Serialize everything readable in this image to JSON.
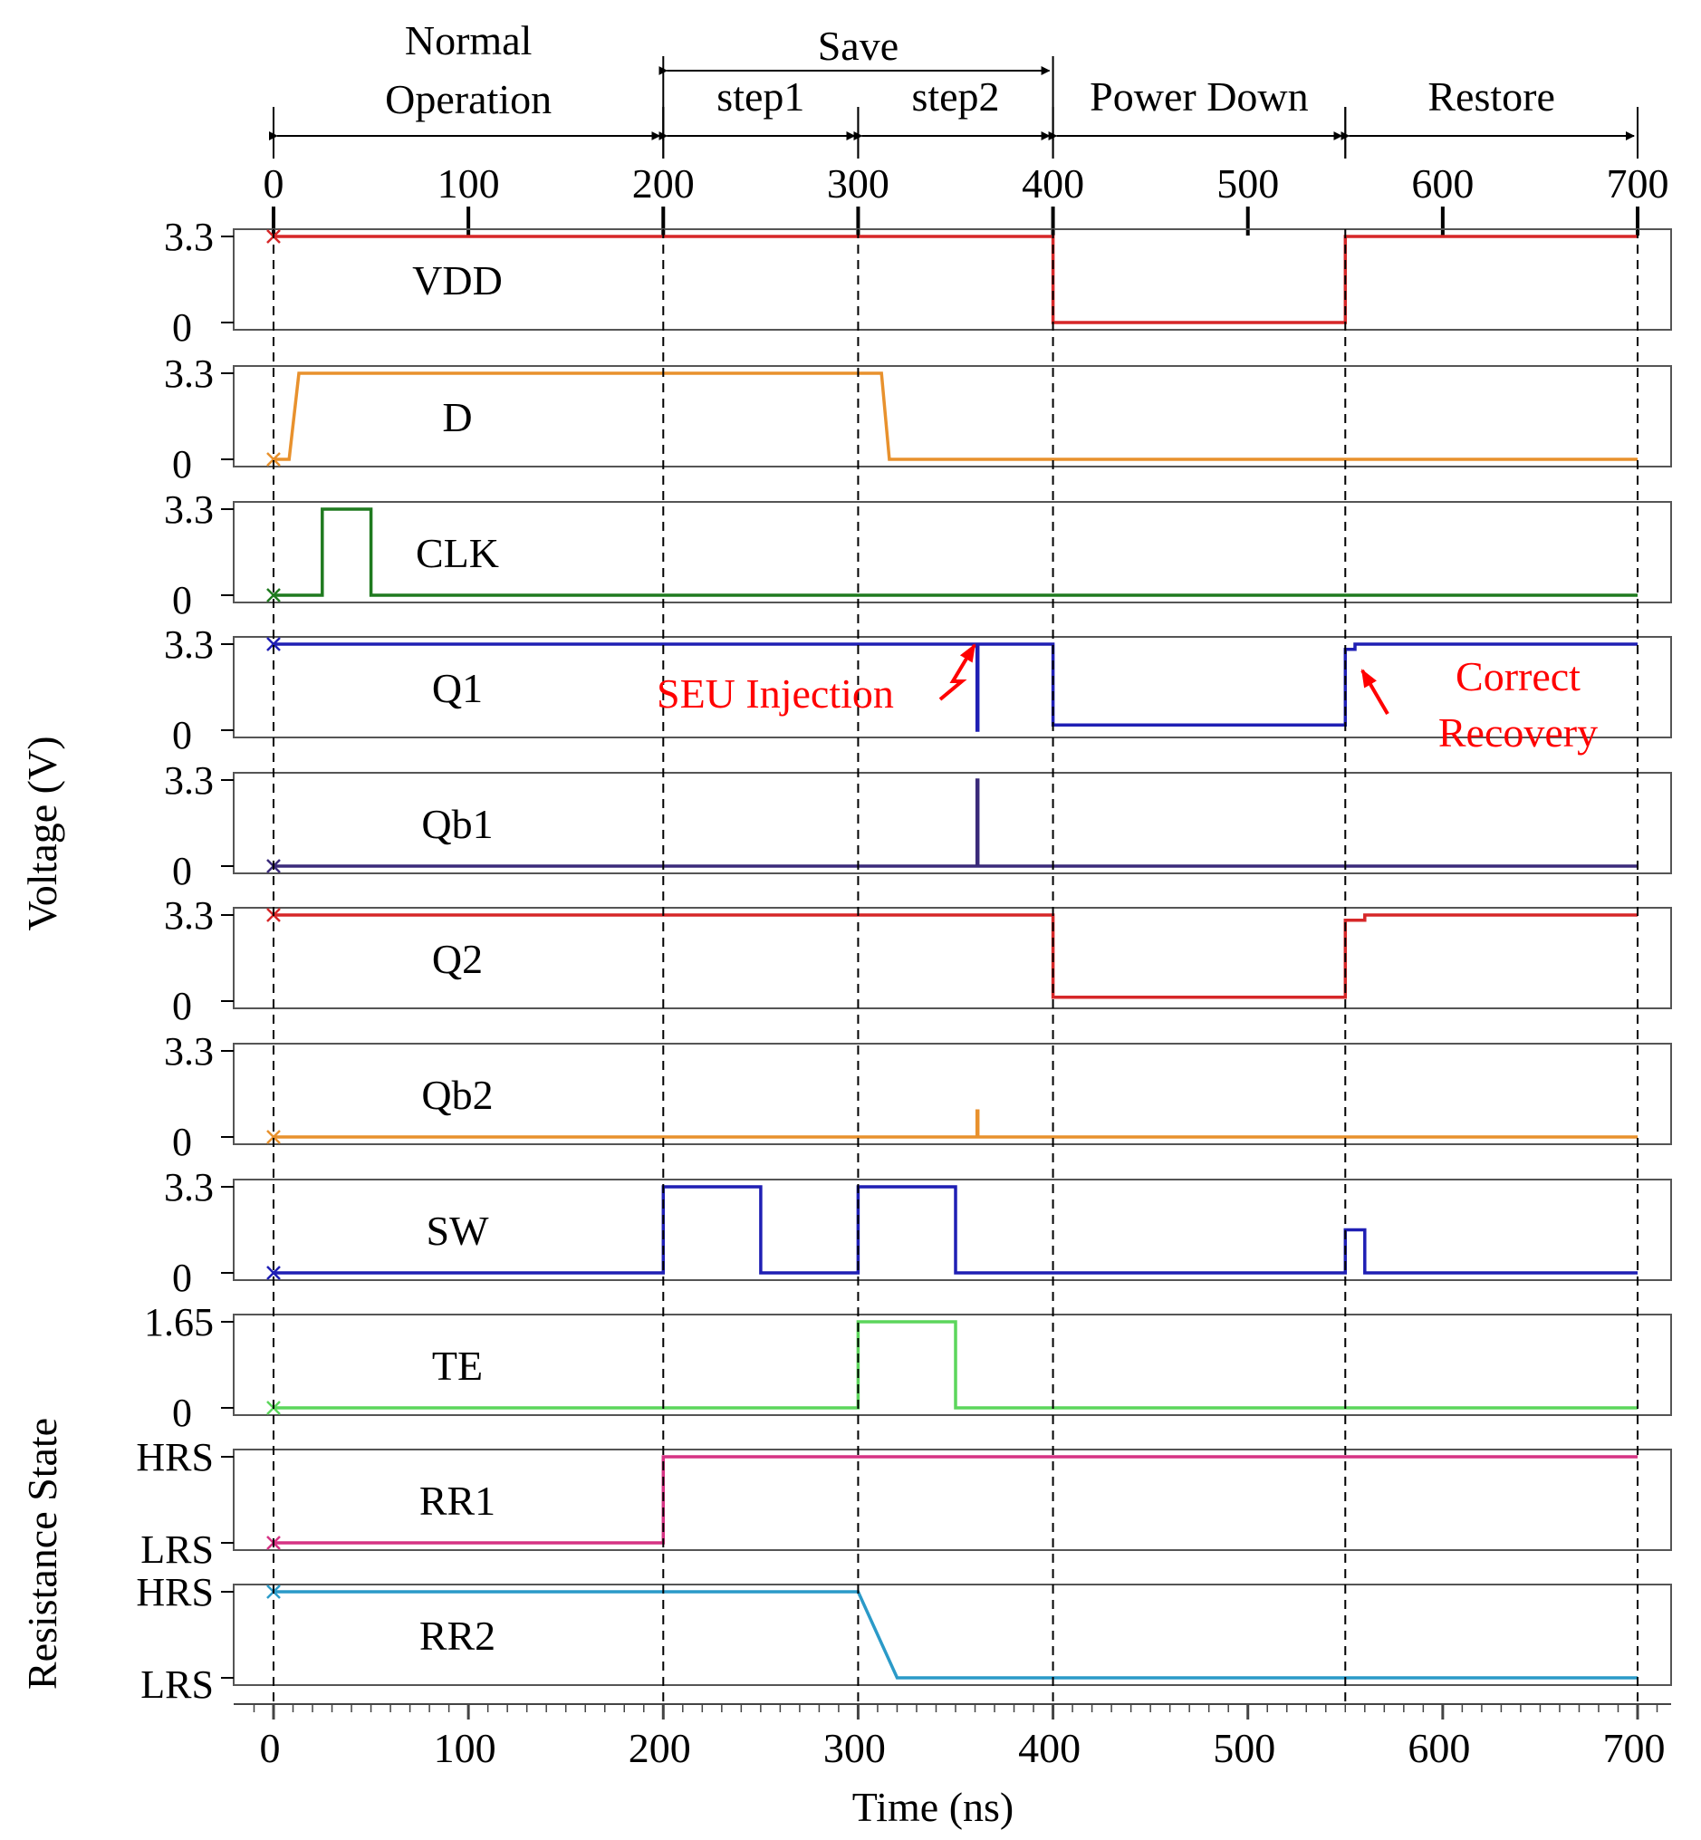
{
  "chart_data": {
    "type": "line",
    "title": "",
    "xlabel": "Time (ns)",
    "ylabel_voltage": "Voltage (V)",
    "ylabel_resistance": "Resistance State",
    "xlim": [
      0,
      700
    ],
    "x_ticks": [
      0,
      100,
      200,
      300,
      400,
      500,
      600,
      700
    ],
    "phases": [
      {
        "label": "Normal Operation",
        "lines": [
          "Normal",
          "Operation"
        ],
        "start": 0,
        "end": 200
      },
      {
        "label": "step1",
        "start": 200,
        "end": 300
      },
      {
        "label": "step2",
        "start": 300,
        "end": 400
      },
      {
        "label": "Power Down",
        "start": 400,
        "end": 550
      },
      {
        "label": "Restore",
        "start": 550,
        "end": 700
      }
    ],
    "save_label": "Save",
    "save_range": [
      200,
      400
    ],
    "dashed_lines_at": [
      0,
      200,
      300,
      400,
      550,
      700
    ],
    "series": [
      {
        "name": "VDD",
        "color": "#d62728",
        "y_labels": [
          "3.3",
          "0"
        ],
        "ymax": 3.3,
        "points": [
          [
            0,
            3.3
          ],
          [
            400,
            3.3
          ],
          [
            400,
            0
          ],
          [
            550,
            0
          ],
          [
            550,
            3.3
          ],
          [
            700,
            3.3
          ]
        ]
      },
      {
        "name": "D",
        "color": "#e8912d",
        "y_labels": [
          "3.3",
          "0"
        ],
        "ymax": 3.3,
        "points": [
          [
            0,
            0
          ],
          [
            8,
            0
          ],
          [
            13,
            3.3
          ],
          [
            312,
            3.3
          ],
          [
            316,
            0
          ],
          [
            700,
            0
          ]
        ]
      },
      {
        "name": "CLK",
        "color": "#1f7a1f",
        "y_labels": [
          "3.3",
          "0"
        ],
        "ymax": 3.3,
        "points": [
          [
            0,
            0
          ],
          [
            25,
            0
          ],
          [
            25,
            3.3
          ],
          [
            50,
            3.3
          ],
          [
            50,
            0
          ],
          [
            700,
            0
          ]
        ]
      },
      {
        "name": "Q1",
        "color": "#1f1fb4",
        "y_labels": [
          "3.3",
          "0"
        ],
        "ymax": 3.3,
        "points": [
          [
            0,
            3.3
          ],
          [
            361,
            3.3
          ],
          [
            361,
            0
          ],
          [
            361.5,
            0
          ],
          [
            361.5,
            3.3
          ],
          [
            400,
            3.3
          ],
          [
            400,
            0.2
          ],
          [
            550,
            0.2
          ],
          [
            550,
            3.1
          ],
          [
            555,
            3.1
          ],
          [
            555,
            3.3
          ],
          [
            700,
            3.3
          ]
        ]
      },
      {
        "name": "Qb1",
        "color": "#3a2a7a",
        "y_labels": [
          "3.3",
          "0"
        ],
        "ymax": 3.3,
        "points": [
          [
            0,
            0
          ],
          [
            361,
            0
          ],
          [
            361,
            3.3
          ],
          [
            361.5,
            3.3
          ],
          [
            361.5,
            0
          ],
          [
            700,
            0
          ]
        ]
      },
      {
        "name": "Q2",
        "color": "#d62728",
        "y_labels": [
          "3.3",
          "0"
        ],
        "ymax": 3.3,
        "points": [
          [
            0,
            3.3
          ],
          [
            400,
            3.3
          ],
          [
            400,
            0.15
          ],
          [
            550,
            0.15
          ],
          [
            550,
            3.1
          ],
          [
            560,
            3.1
          ],
          [
            560,
            3.3
          ],
          [
            700,
            3.3
          ]
        ]
      },
      {
        "name": "Qb2",
        "color": "#e8912d",
        "y_labels": [
          "3.3",
          "0"
        ],
        "ymax": 3.3,
        "points": [
          [
            0,
            0
          ],
          [
            361,
            0
          ],
          [
            361,
            1
          ],
          [
            361.5,
            1
          ],
          [
            361.5,
            0
          ],
          [
            700,
            0
          ]
        ]
      },
      {
        "name": "SW",
        "color": "#1f1fb4",
        "y_labels": [
          "3.3",
          "0"
        ],
        "ymax": 3.3,
        "points": [
          [
            0,
            0
          ],
          [
            200,
            0
          ],
          [
            200,
            3.3
          ],
          [
            250,
            3.3
          ],
          [
            250,
            0
          ],
          [
            300,
            0
          ],
          [
            300,
            3.3
          ],
          [
            350,
            3.3
          ],
          [
            350,
            0
          ],
          [
            550,
            0
          ],
          [
            550,
            1.65
          ],
          [
            560,
            1.65
          ],
          [
            560,
            0
          ],
          [
            700,
            0
          ]
        ]
      },
      {
        "name": "TE",
        "color": "#5cd65c",
        "y_labels": [
          "1.65",
          "0"
        ],
        "ymax": 1.65,
        "points": [
          [
            0,
            0
          ],
          [
            300,
            0
          ],
          [
            300,
            1.65
          ],
          [
            350,
            1.65
          ],
          [
            350,
            0
          ],
          [
            700,
            0
          ]
        ]
      },
      {
        "name": "RR1",
        "color": "#d63384",
        "y_labels": [
          "HRS",
          "LRS"
        ],
        "ymax": 1,
        "points": [
          [
            0,
            0
          ],
          [
            200,
            0
          ],
          [
            200,
            1
          ],
          [
            700,
            1
          ]
        ]
      },
      {
        "name": "RR2",
        "color": "#2b9ac8",
        "y_labels": [
          "HRS",
          "LRS"
        ],
        "ymax": 1,
        "points": [
          [
            0,
            1
          ],
          [
            300,
            1
          ],
          [
            320,
            0
          ],
          [
            700,
            0
          ]
        ]
      }
    ],
    "annotations": [
      {
        "text": "SEU Injection",
        "color": "#ff0000"
      },
      {
        "text_lines": [
          "Correct",
          "Recovery"
        ],
        "color": "#ff0000"
      }
    ]
  }
}
